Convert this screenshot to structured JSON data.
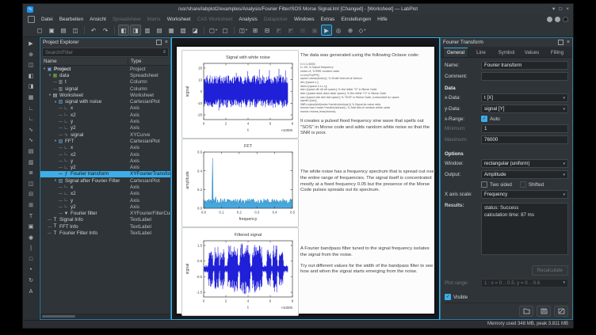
{
  "window": {
    "title": "/usr/share/labplot2/examples/Analysis/Fourier Filter/SOS Morse Signal.lml [Changed] - [Worksheet] — LabPlot",
    "controls": [
      {
        "name": "minimize-button",
        "glyph": "▾"
      },
      {
        "name": "maximize-button",
        "glyph": "□"
      },
      {
        "name": "close-button",
        "glyph": "×"
      }
    ]
  },
  "menubar": {
    "items": [
      {
        "label": "Datei",
        "enabled": true
      },
      {
        "label": "Bearbeiten",
        "enabled": true
      },
      {
        "label": "Ansicht",
        "enabled": true
      },
      {
        "label": "Spreadsheet",
        "enabled": false
      },
      {
        "label": "Matrix",
        "enabled": false
      },
      {
        "label": "Worksheet",
        "enabled": true
      },
      {
        "label": "CAS Worksheet",
        "enabled": false
      },
      {
        "label": "Analysis",
        "enabled": true
      },
      {
        "label": "Datapicker",
        "enabled": false
      },
      {
        "label": "Windows",
        "enabled": true
      },
      {
        "label": "Extras",
        "enabled": true
      },
      {
        "label": "Einstellungen",
        "enabled": true
      },
      {
        "label": "Hilfe",
        "enabled": true
      }
    ]
  },
  "toolbar": {
    "items": [
      {
        "name": "new-document-icon",
        "glyph": "▢"
      },
      {
        "name": "open-folder-icon",
        "glyph": "▣"
      },
      {
        "name": "save-icon",
        "glyph": "▤"
      },
      {
        "name": "print-icon",
        "glyph": "◫"
      },
      {
        "sep": true
      },
      {
        "name": "undo-icon",
        "glyph": "↶"
      },
      {
        "name": "redo-icon",
        "glyph": "↷"
      },
      {
        "sep": true
      },
      {
        "name": "zoom-select-toggle-icon",
        "glyph": "◧",
        "state": "pressed"
      },
      {
        "name": "select-region-toggle-icon",
        "glyph": "◨",
        "state": "pressed"
      },
      {
        "name": "layout-vertical-icon",
        "glyph": "▥"
      },
      {
        "name": "layout-horizontal-icon",
        "glyph": "▤"
      },
      {
        "name": "layout-grid-icon",
        "glyph": "▦"
      },
      {
        "name": "break-layout-icon",
        "glyph": "▧"
      },
      {
        "name": "edit-layout-icon",
        "glyph": "◪"
      },
      {
        "sep": true
      },
      {
        "name": "add-plot-icon",
        "glyph": "▢",
        "dropdown": true
      },
      {
        "name": "add-plot-four-axes-icon",
        "glyph": "▢"
      },
      {
        "sep": true
      },
      {
        "name": "export-image-icon",
        "glyph": "◫",
        "dropdown": true
      },
      {
        "name": "add-matrix-icon",
        "glyph": "⊞"
      },
      {
        "name": "add-grid-icon",
        "glyph": "⊟"
      },
      {
        "name": "group-icon",
        "glyph": "◩",
        "state": "disabled"
      },
      {
        "name": "ungroup-icon",
        "glyph": "◩",
        "state": "disabled"
      },
      {
        "name": "raise-icon",
        "glyph": "⊞",
        "state": "disabled"
      },
      {
        "name": "lower-icon",
        "glyph": "▣",
        "state": "disabled"
      },
      {
        "name": "select-mode-icon",
        "glyph": "▶",
        "state": "active"
      },
      {
        "name": "crosshair-mode-icon",
        "glyph": "◎"
      },
      {
        "name": "zoom-mode-icon",
        "glyph": "⊕"
      },
      {
        "name": "magnification-icon",
        "glyph": "◇",
        "dropdown": true
      }
    ]
  },
  "left_toolbar": {
    "items": [
      {
        "name": "select-arrow-icon",
        "glyph": "▶"
      },
      {
        "name": "crosshair-icon",
        "glyph": "⊕"
      },
      {
        "name": "zoom-select-icon",
        "glyph": "◫"
      },
      {
        "name": "zoom-x-icon",
        "glyph": "◧"
      },
      {
        "name": "zoom-y-icon",
        "glyph": "◨"
      },
      {
        "name": "plot-area-icon",
        "glyph": "▦"
      },
      {
        "name": "axis-vertical-icon",
        "glyph": "∟"
      },
      {
        "name": "axis-horizontal-icon",
        "glyph": "∟"
      },
      {
        "name": "xy-curve-icon",
        "glyph": "∿"
      },
      {
        "name": "xy-equation-curve-icon",
        "glyph": "∿"
      },
      {
        "name": "legend-icon",
        "glyph": "▤"
      },
      {
        "name": "histogram-icon",
        "glyph": "▥"
      },
      {
        "name": "bar-plot-icon",
        "glyph": "≣"
      },
      {
        "name": "box-plot-icon",
        "glyph": "◫"
      },
      {
        "name": "shrink-icon",
        "glyph": "⊟"
      },
      {
        "name": "expand-icon",
        "glyph": "⊞"
      },
      {
        "name": "text-label-icon",
        "glyph": "T"
      },
      {
        "name": "image-icon",
        "glyph": "▣"
      },
      {
        "name": "info-element-icon",
        "glyph": "◉"
      },
      {
        "name": "reference-line-icon",
        "glyph": "|"
      },
      {
        "name": "reference-range-icon",
        "glyph": "□"
      },
      {
        "name": "custom-point-icon",
        "glyph": "•"
      },
      {
        "name": "rotate-icon",
        "glyph": "↻"
      },
      {
        "name": "font-icon",
        "glyph": "A"
      }
    ]
  },
  "project_explorer": {
    "title": "Project Explorer",
    "search_placeholder": "Search/Filter",
    "columns": [
      "Name",
      "Type"
    ],
    "rows": [
      {
        "depth": 0,
        "icon": "folder",
        "label": "Project",
        "type": "Project",
        "bold": true,
        "expanded": true
      },
      {
        "depth": 1,
        "icon": "spreadsheet",
        "label": "data",
        "type": "Spreadsheet",
        "expanded": true
      },
      {
        "depth": 2,
        "icon": "column",
        "label": "t",
        "type": "Column"
      },
      {
        "depth": 2,
        "icon": "column",
        "label": "signal",
        "type": "Column"
      },
      {
        "depth": 1,
        "icon": "worksheet",
        "label": "Worksheet",
        "type": "Worksheet",
        "expanded": true
      },
      {
        "depth": 2,
        "icon": "plot",
        "label": "signal with noise",
        "type": "CartesianPlot",
        "expanded": true
      },
      {
        "depth": 3,
        "icon": "axis",
        "label": "x",
        "type": "Axis"
      },
      {
        "depth": 3,
        "icon": "axis",
        "label": "x2",
        "type": "Axis"
      },
      {
        "depth": 3,
        "icon": "axis",
        "label": "y",
        "type": "Axis"
      },
      {
        "depth": 3,
        "icon": "axis",
        "label": "y2",
        "type": "Axis"
      },
      {
        "depth": 3,
        "icon": "curve",
        "label": "signal",
        "type": "XYCurve"
      },
      {
        "depth": 2,
        "icon": "plot",
        "label": "FFT",
        "type": "CartesianPlot",
        "expanded": true
      },
      {
        "depth": 3,
        "icon": "axis",
        "label": "x",
        "type": "Axis"
      },
      {
        "depth": 3,
        "icon": "axis",
        "label": "x2",
        "type": "Axis"
      },
      {
        "depth": 3,
        "icon": "axis",
        "label": "y",
        "type": "Axis"
      },
      {
        "depth": 3,
        "icon": "axis",
        "label": "y2",
        "type": "Axis"
      },
      {
        "depth": 3,
        "icon": "fourier",
        "label": "Fourier transform",
        "type": "XYFourierTransformCurve",
        "selected": true
      },
      {
        "depth": 2,
        "icon": "plot",
        "label": "Signal after Fourier Filter",
        "type": "CartesianPlot",
        "expanded": true
      },
      {
        "depth": 3,
        "icon": "axis",
        "label": "x",
        "type": "Axis"
      },
      {
        "depth": 3,
        "icon": "axis",
        "label": "x2",
        "type": "Axis"
      },
      {
        "depth": 3,
        "icon": "axis",
        "label": "y",
        "type": "Axis"
      },
      {
        "depth": 3,
        "icon": "axis",
        "label": "y2",
        "type": "Axis"
      },
      {
        "depth": 3,
        "icon": "filter",
        "label": "Fourier filter",
        "type": "XYFourierFilterCurve"
      },
      {
        "depth": 1,
        "icon": "textlabel",
        "label": "Signal Info",
        "type": "TextLabel"
      },
      {
        "depth": 1,
        "icon": "textlabel",
        "label": "FFT Info",
        "type": "TextLabel"
      },
      {
        "depth": 1,
        "icon": "textlabel",
        "label": "Fourier Filter Info",
        "type": "TextLabel"
      }
    ]
  },
  "worksheet": {
    "heading": "The data was generated using the following Octave code:",
    "code_lines": [
      "t=1:1:4000;",
      "f=.05;  % Signal frequency",
      "noise=4;  % RMS random noise",
      "s=sin(2*pi*f*t);",
      "space=zeros(size(s));  % Small interval of silence",
      "dit=[space s ];",
      "dash=[space s s s s];",
      "dot=[space dit dit dit space];  % the letter \"S\" in Morse Code",
      "dah=[space dash dash dash space];  % the letter \"O\" in Morse Code",
      "sos=[space dot dah dot space];  % \"SOS\" in Morse Code, surrounded by space",
      "signal=[sos];",
      "SNR=signal/std(noise.*randn(size(sos)))  % Signal-to-noise ratio",
      "morse=sos+noise.*randn(size(sos));  % Add lots of random white noise",
      "morse=morse./max(morse);"
    ],
    "para1": "It creates a pulsed fixed frequency sine wave that spells out \"SOS\" in Morse code and adds random white noise so that the SNR is poor.",
    "para2": "The white noise has a frequency spectrum that is spread out over the entire range of frequencies. The signal itself is concentrated mostly at a fixed frequency 0.05 but the presence of the Morse Code pulses spreads out its spectrum.",
    "para3a": "A Fourier bandpass filter tuned to the signal frequency isolates the signal from the noise.",
    "para3b": "Try out different values for the width of the bandpass filter to see how and when the signal starts emerging from the noise."
  },
  "chart_data": [
    {
      "type": "noise-band",
      "title": "Signal with white noise",
      "xlabel": "t",
      "ylabel": "signal",
      "x_multiplier": "×10000",
      "xlim": [
        0,
        8
      ],
      "ylim": [
        -24,
        24
      ],
      "xticks": [
        0,
        2,
        4,
        6,
        8
      ],
      "xtick_labels": [
        "0",
        "2",
        "4",
        "6",
        "8"
      ],
      "yticks": [
        -20,
        -10,
        0,
        10,
        20
      ],
      "ytick_labels": [
        "-20",
        "-10",
        "0",
        "10",
        "20"
      ],
      "series": {
        "name": "signal",
        "color": "#1414d6",
        "x_end": 7.6,
        "base_amp": 11.5,
        "spike_amp": 20,
        "seed": 11
      }
    },
    {
      "type": "area-spectrum",
      "title": "FFT",
      "xlabel": "frequency",
      "ylabel": "amplitude",
      "xlim": [
        0,
        0.5
      ],
      "ylim": [
        0,
        0.6
      ],
      "xticks": [
        0,
        0.1,
        0.2,
        0.3,
        0.4,
        0.5
      ],
      "xtick_labels": [
        "0.0",
        "0.1",
        "0.2",
        "0.3",
        "0.4",
        "0.5"
      ],
      "yticks": [
        0,
        0.2,
        0.4,
        0.6
      ],
      "ytick_labels": [
        "0.0",
        "0.2",
        "0.4",
        "0.6"
      ],
      "series": {
        "name": "Fourier transform",
        "fill": "#47a8de",
        "line": "#2b86bb",
        "baseline": 0.075,
        "peak_x": 0.05,
        "peak_y": 0.535,
        "seed": 5
      }
    },
    {
      "type": "noise-band",
      "title": "Filtered signal",
      "xlabel": "t",
      "ylabel": "signal",
      "x_multiplier": "×10000",
      "xlim": [
        0,
        8
      ],
      "ylim": [
        -1.8,
        1.8
      ],
      "xticks": [
        0,
        2,
        4,
        6,
        8
      ],
      "xtick_labels": [
        "0",
        "2",
        "4",
        "6",
        "8"
      ],
      "yticks": [
        -1.5,
        -0.5,
        0.5,
        1.5
      ],
      "ytick_labels": [
        "-1.5",
        "-0.5",
        "0.5",
        "1.5"
      ],
      "series": {
        "name": "Fourier filter",
        "color": "#1414d6",
        "x_end": 7.6,
        "background": 0.22,
        "seed": 23,
        "envelope": [
          [
            0.45,
            0.8,
            1.05
          ],
          [
            1.0,
            1.35,
            1.3
          ],
          [
            1.5,
            1.85,
            1.15
          ],
          [
            2.2,
            3.05,
            1.4
          ],
          [
            3.3,
            4.15,
            1.5
          ],
          [
            4.4,
            5.25,
            1.4
          ],
          [
            5.7,
            6.05,
            1.15
          ],
          [
            6.25,
            6.6,
            1.35
          ],
          [
            6.8,
            7.15,
            1.05
          ]
        ]
      }
    }
  ],
  "dock": {
    "title": "Fourier Transform",
    "tabs": [
      "General",
      "Line",
      "Symbol",
      "Values",
      "Filling"
    ],
    "active_tab": "General",
    "fields": {
      "name_label": "Name:",
      "name_value": "Fourier transform",
      "comment_label": "Comment:",
      "comment_value": "",
      "data_section": "Data",
      "xdata_label": "x-Data:",
      "xdata_value": "t [X]",
      "ydata_label": "y-Data:",
      "ydata_value": "signal [Y]",
      "xrange_label": "x-Range:",
      "auto_label": "Auto",
      "min_label": "Minimum:",
      "min_value": "1",
      "max_label": "Maximum:",
      "max_value": "76000",
      "options_section": "Options",
      "window_label": "Window:",
      "window_value": "rectangular (uniform)",
      "output_label": "Output:",
      "output_value": "Amplitude",
      "two_sided_label": "Two sided",
      "shifted_label": "Shifted",
      "xscale_label": "X axis scale:",
      "xscale_value": "Frequency",
      "results_label": "Results:",
      "results_lines": [
        "status: Success",
        "calculation time: 87 ms"
      ],
      "recalculate_label": "Recalculate",
      "plot_range_label": "Plot range:",
      "plot_range_value": "1 : x = 0 .. 0.5, y = 0 .. 0.6",
      "visible_label": "Visible"
    }
  },
  "statusbar": {
    "text": "Memory used 348 MB, peak 3.811 MB"
  }
}
